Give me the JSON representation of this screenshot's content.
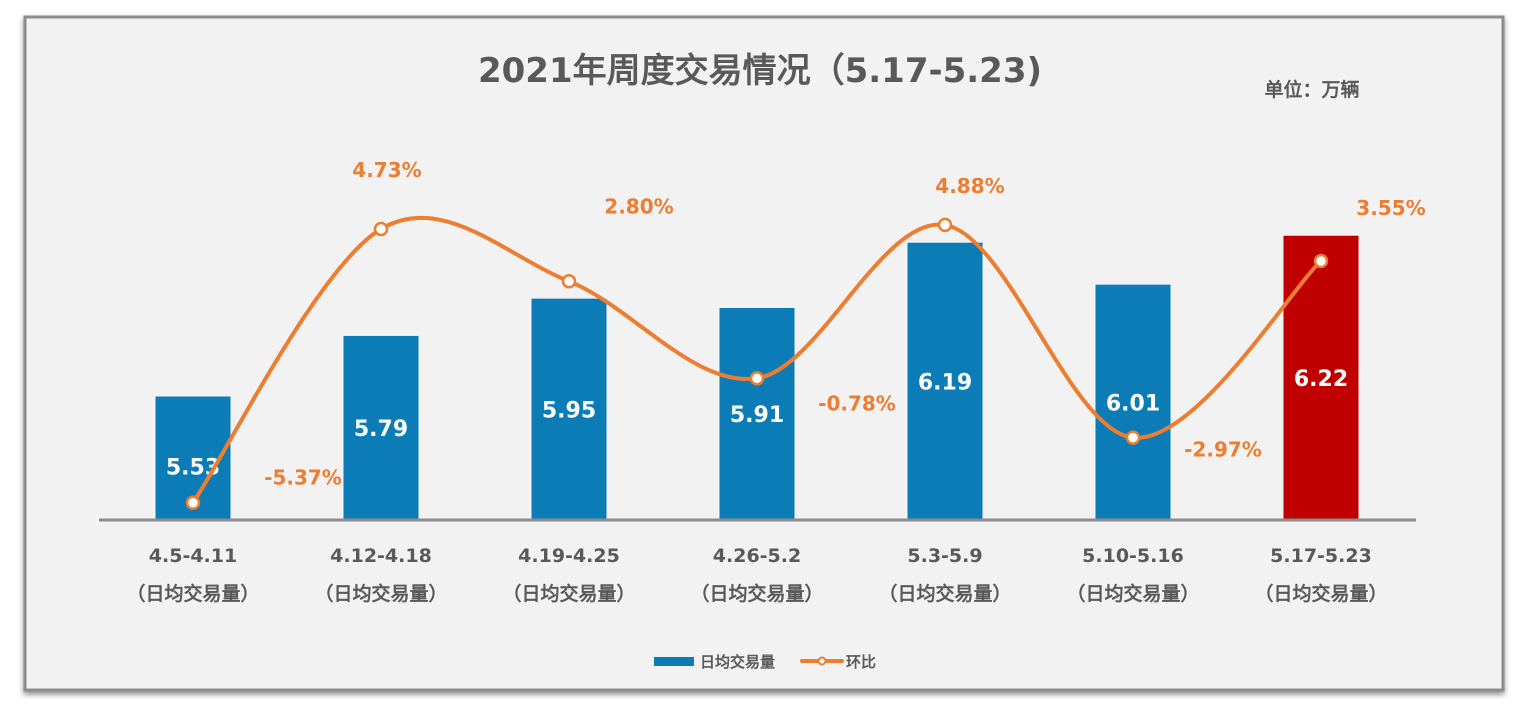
{
  "chart_data": {
    "type": "bar+line",
    "title": "2021年周度交易情况（5.17-5.23)",
    "unit_label": "单位：万辆",
    "categories": [
      "4.5-4.11",
      "4.12-4.18",
      "4.19-4.25",
      "4.26-5.2",
      "5.3-5.9",
      "5.10-5.16",
      "5.17-5.23"
    ],
    "category_sublabel": "（日均交易量）",
    "series": [
      {
        "name": "日均交易量",
        "type": "bar",
        "values": [
          5.53,
          5.79,
          5.95,
          5.91,
          6.19,
          6.01,
          6.22
        ],
        "labels": [
          "5.53",
          "5.79",
          "5.95",
          "5.91",
          "6.19",
          "6.01",
          "6.22"
        ],
        "color": "#0c7cb7",
        "highlight_color": "#c00000",
        "highlight_index": 6
      },
      {
        "name": "环比",
        "type": "line",
        "values": [
          -5.37,
          4.73,
          2.8,
          -0.78,
          4.88,
          -2.97,
          3.55
        ],
        "labels": [
          "-5.37%",
          "4.73%",
          "2.80%",
          "-0.78%",
          "4.88%",
          "-2.97%",
          "3.55%"
        ],
        "color": "#ed7d31",
        "axis": "secondary"
      }
    ],
    "ylim": [
      5.0,
      6.3
    ],
    "grid": false,
    "legend": "bottom"
  }
}
